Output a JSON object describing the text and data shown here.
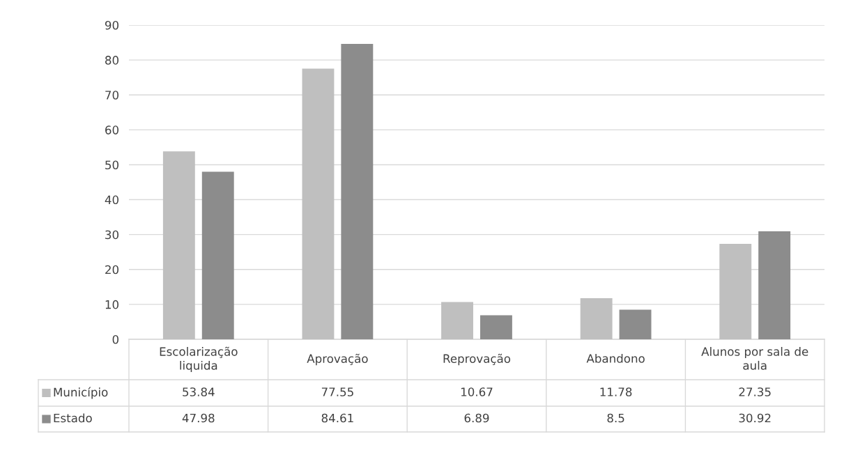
{
  "chart_data": {
    "type": "bar",
    "categories": [
      "Escolarização\nliquida",
      "Aprovação",
      "Reprovação",
      "Abandono",
      "Alunos por sala de\naula"
    ],
    "series": [
      {
        "name": "Município",
        "color": "#bfbfbf",
        "values": [
          53.84,
          77.55,
          10.67,
          11.78,
          27.35
        ]
      },
      {
        "name": "Estado",
        "color": "#8c8c8c",
        "values": [
          47.98,
          84.61,
          6.89,
          8.5,
          30.92
        ]
      }
    ],
    "ylim": [
      0,
      90
    ],
    "yticks": [
      0,
      10,
      20,
      30,
      40,
      50,
      60,
      70,
      80,
      90
    ],
    "grid": "y",
    "legend": "bottom",
    "data_labels": true
  }
}
